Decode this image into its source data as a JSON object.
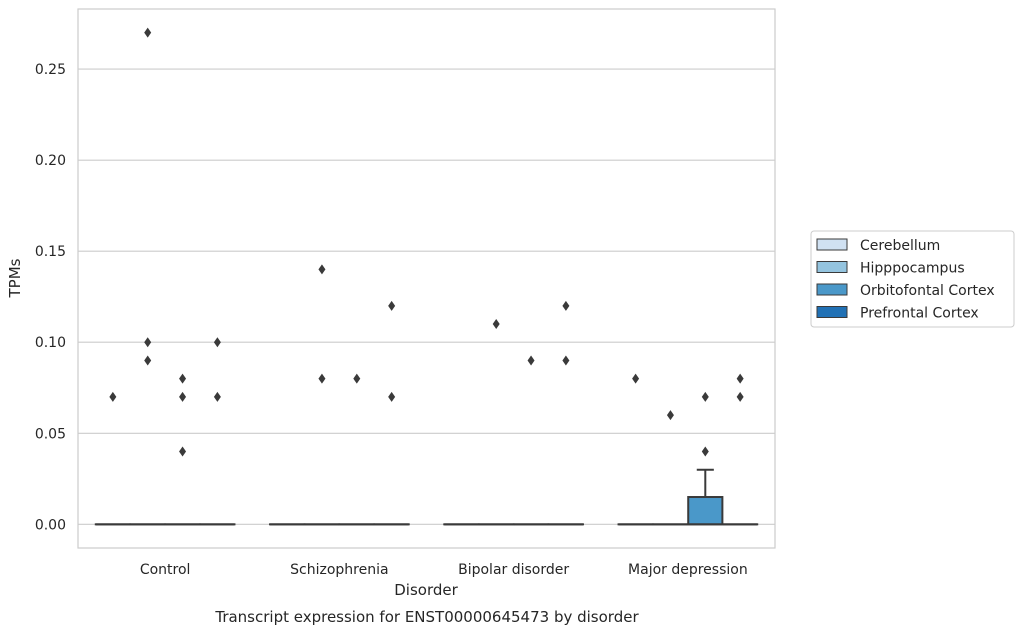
{
  "chart_data": {
    "type": "box",
    "xlabel": "Disorder",
    "ylabel": "TPMs",
    "caption": "Transcript expression for ENST00000645473 by disorder",
    "categories": [
      "Control",
      "Schizophrenia",
      "Bipolar disorder",
      "Major depression"
    ],
    "ylim": [
      -0.013,
      0.283
    ],
    "yticks": [
      0.0,
      0.05,
      0.1,
      0.15,
      0.2,
      0.25
    ],
    "ytick_labels": [
      "0.00",
      "0.05",
      "0.10",
      "0.15",
      "0.20",
      "0.25"
    ],
    "grid": "horizontal",
    "legend_position": "right",
    "series": [
      {
        "name": "Cerebellum",
        "color": "#d0e1f2",
        "boxes": [
          {
            "category": "Control",
            "q1": 0,
            "median": 0,
            "q3": 0,
            "whisker_low": 0,
            "whisker_high": 0,
            "outliers": [
              0.07
            ]
          },
          {
            "category": "Schizophrenia",
            "q1": 0,
            "median": 0,
            "q3": 0,
            "whisker_low": 0,
            "whisker_high": 0,
            "outliers": []
          },
          {
            "category": "Bipolar disorder",
            "q1": 0,
            "median": 0,
            "q3": 0,
            "whisker_low": 0,
            "whisker_high": 0,
            "outliers": []
          },
          {
            "category": "Major depression",
            "q1": 0,
            "median": 0,
            "q3": 0,
            "whisker_low": 0,
            "whisker_high": 0,
            "outliers": [
              0.08
            ]
          }
        ]
      },
      {
        "name": "Hipppocampus",
        "color": "#94c4df",
        "boxes": [
          {
            "category": "Control",
            "q1": 0,
            "median": 0,
            "q3": 0,
            "whisker_low": 0,
            "whisker_high": 0,
            "outliers": [
              0.27,
              0.1,
              0.09
            ]
          },
          {
            "category": "Schizophrenia",
            "q1": 0,
            "median": 0,
            "q3": 0,
            "whisker_low": 0,
            "whisker_high": 0,
            "outliers": [
              0.14,
              0.08
            ]
          },
          {
            "category": "Bipolar disorder",
            "q1": 0,
            "median": 0,
            "q3": 0,
            "whisker_low": 0,
            "whisker_high": 0,
            "outliers": [
              0.11
            ]
          },
          {
            "category": "Major depression",
            "q1": 0,
            "median": 0,
            "q3": 0,
            "whisker_low": 0,
            "whisker_high": 0,
            "outliers": [
              0.06
            ]
          }
        ]
      },
      {
        "name": "Orbitofontal Cortex",
        "color": "#4a98c9",
        "boxes": [
          {
            "category": "Control",
            "q1": 0,
            "median": 0,
            "q3": 0,
            "whisker_low": 0,
            "whisker_high": 0,
            "outliers": [
              0.08,
              0.07,
              0.04
            ]
          },
          {
            "category": "Schizophrenia",
            "q1": 0,
            "median": 0,
            "q3": 0,
            "whisker_low": 0,
            "whisker_high": 0,
            "outliers": [
              0.08
            ]
          },
          {
            "category": "Bipolar disorder",
            "q1": 0,
            "median": 0,
            "q3": 0,
            "whisker_low": 0,
            "whisker_high": 0,
            "outliers": [
              0.09
            ]
          },
          {
            "category": "Major depression",
            "q1": 0,
            "median": 0,
            "q3": 0.015,
            "whisker_low": 0,
            "whisker_high": 0.03,
            "outliers": [
              0.07,
              0.04
            ]
          }
        ]
      },
      {
        "name": "Prefrontal Cortex",
        "color": "#2171b5",
        "boxes": [
          {
            "category": "Control",
            "q1": 0,
            "median": 0,
            "q3": 0,
            "whisker_low": 0,
            "whisker_high": 0,
            "outliers": [
              0.1,
              0.07
            ]
          },
          {
            "category": "Schizophrenia",
            "q1": 0,
            "median": 0,
            "q3": 0,
            "whisker_low": 0,
            "whisker_high": 0,
            "outliers": [
              0.12,
              0.07
            ]
          },
          {
            "category": "Bipolar disorder",
            "q1": 0,
            "median": 0,
            "q3": 0,
            "whisker_low": 0,
            "whisker_high": 0,
            "outliers": [
              0.12,
              0.09
            ]
          },
          {
            "category": "Major depression",
            "q1": 0,
            "median": 0,
            "q3": 0,
            "whisker_low": 0,
            "whisker_high": 0,
            "outliers": [
              0.08,
              0.07
            ]
          }
        ]
      }
    ]
  }
}
